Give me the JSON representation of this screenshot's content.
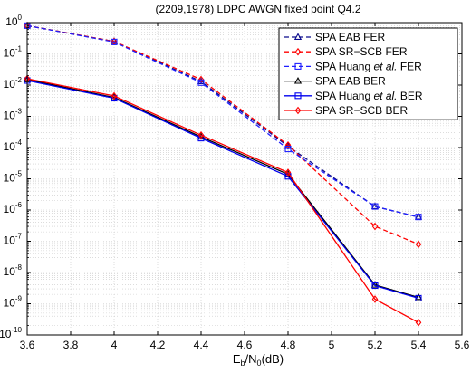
{
  "chart_data": {
    "type": "line",
    "title": "(2209,1978) LDPC AWGN fixed point Q4.2",
    "xlabel": {
      "base": "E",
      "sub1": "b",
      "mid": "/N",
      "sub2": "0",
      "tail": "(dB)"
    },
    "ylabel": "",
    "x": [
      3.6,
      4.0,
      4.4,
      4.8,
      5.2,
      5.4
    ],
    "xlim": [
      3.6,
      5.6
    ],
    "ylim": [
      1e-10,
      1
    ],
    "yscale": "log",
    "xticks": [
      "3.6",
      "3.8",
      "4",
      "4.2",
      "4.4",
      "4.6",
      "4.8",
      "5",
      "5.2",
      "5.4",
      "5.6"
    ],
    "yticks_exp": [
      "0",
      "-1",
      "-2",
      "-3",
      "-4",
      "-5",
      "-6",
      "-7",
      "-8",
      "-9",
      "-10"
    ],
    "ytick_base": "10",
    "grid": true,
    "legend_position": "top-right",
    "series": [
      {
        "name": "SPA EAB FER",
        "italic": "",
        "name_tail": "",
        "color": "#0a0a8c",
        "dash": true,
        "marker": "triangle",
        "values": [
          0.8,
          0.25,
          0.013,
          0.00011,
          1.3e-06,
          6e-07
        ]
      },
      {
        "name": "SPA SR−SCB FER",
        "italic": "",
        "name_tail": "",
        "color": "#ff0000",
        "dash": true,
        "marker": "diamond",
        "values": [
          0.8,
          0.25,
          0.015,
          0.00012,
          3e-07,
          8e-08
        ]
      },
      {
        "name": "SPA Huang ",
        "italic": "et al.",
        "name_tail": " FER",
        "color": "#1f1fff",
        "dash": true,
        "marker": "square",
        "values": [
          0.8,
          0.24,
          0.012,
          9e-05,
          1.3e-06,
          6e-07
        ]
      },
      {
        "name": "SPA EAB BER",
        "italic": "",
        "name_tail": "",
        "color": "#000000",
        "dash": false,
        "marker": "triangle",
        "values": [
          0.015,
          0.004,
          0.00022,
          1.4e-05,
          4e-09,
          1.6e-09
        ]
      },
      {
        "name": "SPA Huang ",
        "italic": "et al.",
        "name_tail": " BER",
        "color": "#0000ee",
        "dash": false,
        "marker": "square",
        "values": [
          0.014,
          0.0038,
          0.0002,
          1.2e-05,
          3.8e-09,
          1.5e-09
        ]
      },
      {
        "name": "SPA SR−SCB BER",
        "italic": "",
        "name_tail": "",
        "color": "#ff0000",
        "dash": false,
        "marker": "diamond",
        "values": [
          0.016,
          0.0045,
          0.00025,
          1.6e-05,
          1.4e-09,
          2.5e-10
        ]
      }
    ]
  }
}
